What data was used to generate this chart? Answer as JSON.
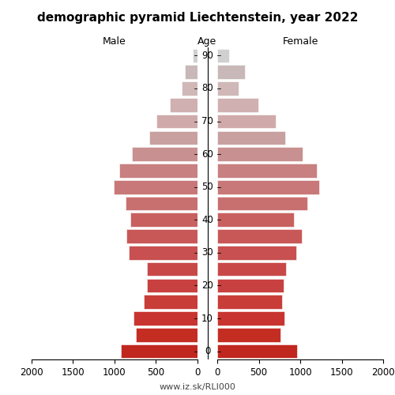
{
  "title": "demographic pyramid Liechtenstein, year 2022",
  "xlabel_left": "Male",
  "xlabel_right": "Female",
  "ylabel": "Age",
  "footnote": "www.iz.sk/RLI000",
  "ages": [
    0,
    5,
    10,
    15,
    20,
    25,
    30,
    35,
    40,
    45,
    50,
    55,
    60,
    65,
    70,
    75,
    80,
    85,
    90
  ],
  "male": [
    920,
    740,
    770,
    650,
    610,
    610,
    830,
    860,
    810,
    870,
    1010,
    940,
    790,
    580,
    490,
    330,
    190,
    155,
    55
  ],
  "female": [
    960,
    760,
    810,
    780,
    800,
    830,
    950,
    1020,
    920,
    1090,
    1230,
    1200,
    1030,
    820,
    700,
    490,
    260,
    330,
    140
  ],
  "xlim": 2000,
  "colors": [
    "#c0271f",
    "#c42d22",
    "#c83530",
    "#c83d38",
    "#c84040",
    "#c84848",
    "#c85050",
    "#c85858",
    "#c86060",
    "#c87070",
    "#c87878",
    "#c88080",
    "#c89090",
    "#c8a0a0",
    "#d0aaaa",
    "#d0b0b0",
    "#d0b8b8",
    "#c8b8b8",
    "#d0d0d0"
  ],
  "bar_height": 0.85,
  "bg_color": "#ffffff",
  "title_fontsize": 11,
  "label_fontsize": 9,
  "tick_fontsize": 8.5,
  "footnote_fontsize": 8
}
